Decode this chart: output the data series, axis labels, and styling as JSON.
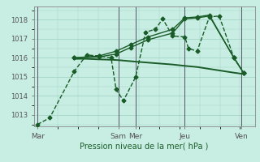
{
  "xlabel": "Pression niveau de la mer( hPa )",
  "background_color": "#c8eee4",
  "plot_bg_color": "#c8eee4",
  "grid_color": "#9ecfbf",
  "line_color": "#1a5c28",
  "yticks": [
    1013,
    1014,
    1015,
    1016,
    1017,
    1018
  ],
  "ylim": [
    1012.4,
    1018.7
  ],
  "xlim": [
    -0.15,
    8.85
  ],
  "xtick_labels": [
    "Mar",
    "Sam",
    "Mer",
    "Jeu",
    "Ven"
  ],
  "xtick_positions": [
    0,
    3.3,
    4.0,
    6.0,
    8.3
  ],
  "vlines": [
    0,
    3.3,
    4.0,
    6.0,
    8.3
  ],
  "series": [
    {
      "x": [
        0.0,
        0.5,
        1.5,
        2.0,
        2.5,
        3.0,
        3.2,
        3.5,
        4.0,
        4.4,
        4.8,
        5.1,
        5.5,
        6.0,
        6.15,
        6.5,
        7.0,
        7.4,
        8.0,
        8.4
      ],
      "y": [
        1012.5,
        1012.85,
        1015.3,
        1016.15,
        1016.1,
        1016.0,
        1014.35,
        1013.75,
        1015.0,
        1017.35,
        1017.5,
        1018.05,
        1017.15,
        1017.1,
        1016.5,
        1016.35,
        1018.15,
        1018.2,
        1016.0,
        1015.2
      ],
      "marker": "D",
      "markersize": 2.5,
      "linewidth": 1.0,
      "linestyle": "--",
      "zorder": 3
    },
    {
      "x": [
        1.5,
        2.0,
        2.5,
        3.0,
        3.3,
        4.0,
        4.5,
        5.0,
        5.5,
        6.0,
        6.5,
        7.0,
        7.5,
        8.0,
        8.4
      ],
      "y": [
        1015.95,
        1015.95,
        1015.92,
        1015.9,
        1015.88,
        1015.8,
        1015.75,
        1015.7,
        1015.65,
        1015.58,
        1015.52,
        1015.42,
        1015.32,
        1015.22,
        1015.15
      ],
      "marker": "None",
      "markersize": 0,
      "linewidth": 1.4,
      "linestyle": "-",
      "zorder": 2
    },
    {
      "x": [
        1.5,
        2.5,
        3.2,
        3.8,
        4.5,
        5.5,
        6.0,
        6.5,
        7.0,
        8.0,
        8.4
      ],
      "y": [
        1016.0,
        1016.05,
        1016.2,
        1016.55,
        1016.95,
        1017.3,
        1018.05,
        1018.1,
        1018.2,
        1016.0,
        1015.2
      ],
      "marker": "D",
      "markersize": 2.5,
      "linewidth": 1.0,
      "linestyle": "-",
      "zorder": 3
    },
    {
      "x": [
        1.5,
        2.5,
        3.2,
        3.8,
        4.5,
        5.5,
        6.0,
        6.5,
        7.0,
        8.0,
        8.4
      ],
      "y": [
        1016.0,
        1016.1,
        1016.35,
        1016.7,
        1017.1,
        1017.5,
        1018.1,
        1018.15,
        1018.25,
        1016.0,
        1015.2
      ],
      "marker": "D",
      "markersize": 2.5,
      "linewidth": 1.0,
      "linestyle": "-",
      "zorder": 3
    }
  ]
}
